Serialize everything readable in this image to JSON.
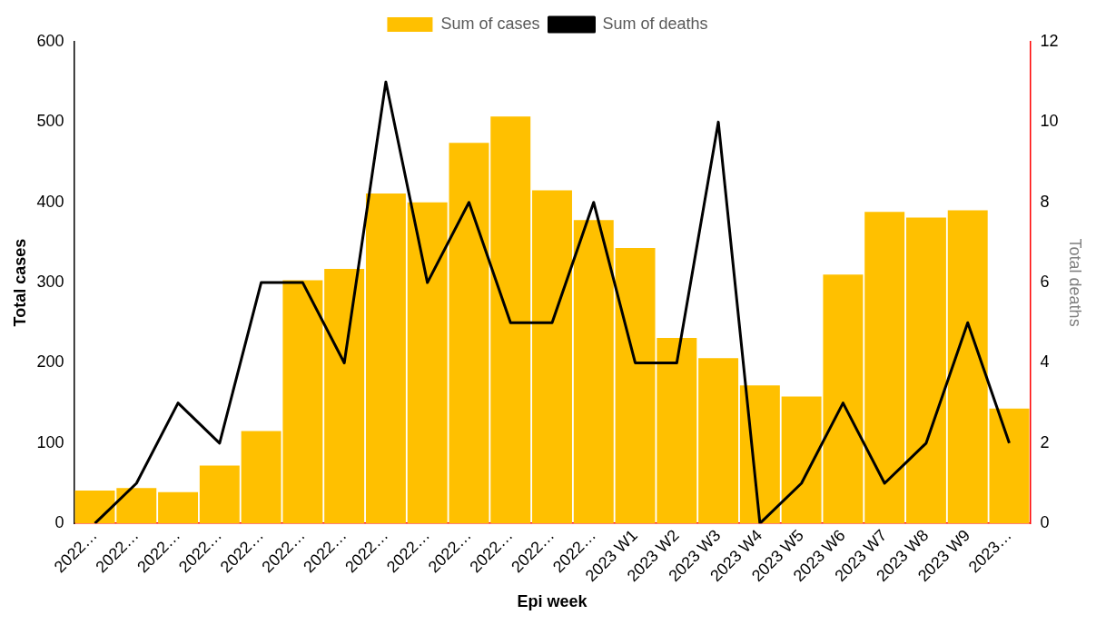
{
  "chart_data": {
    "type": "bar",
    "xlabel": "Epi week",
    "ylabel": "Total cases",
    "y2label": "Total deaths",
    "categories": [
      "2022…",
      "2022…",
      "2022…",
      "2022…",
      "2022…",
      "2022…",
      "2022…",
      "2022…",
      "2022…",
      "2022…",
      "2022…",
      "2022…",
      "2022…",
      "2023 W1",
      "2023 W2",
      "2023 W3",
      "2023 W4",
      "2023 W5",
      "2023 W6",
      "2023 W7",
      "2023 W8",
      "2023 W9",
      "2023…"
    ],
    "series": [
      {
        "name": "Sum of cases",
        "color": "#ffc000",
        "values": [
          41,
          44,
          39,
          72,
          115,
          303,
          317,
          411,
          400,
          474,
          507,
          415,
          378,
          343,
          231,
          206,
          172,
          158,
          310,
          388,
          381,
          390,
          143
        ]
      },
      {
        "name": "Sum of deaths",
        "type": "line",
        "axis": "y2",
        "color": "#000000",
        "values": [
          0,
          1,
          3,
          2,
          6,
          6,
          4,
          11,
          6,
          8,
          5,
          5,
          8,
          4,
          4,
          10,
          0,
          1,
          3,
          1,
          2,
          5,
          2
        ]
      }
    ],
    "ylim": [
      0,
      600
    ],
    "yticks": [
      0,
      100,
      200,
      300,
      400,
      500,
      600
    ],
    "y2lim": [
      0,
      12
    ],
    "y2ticks": [
      0,
      2,
      4,
      6,
      8,
      10,
      12
    ],
    "grid": false,
    "legend": "top",
    "marker": "none"
  }
}
